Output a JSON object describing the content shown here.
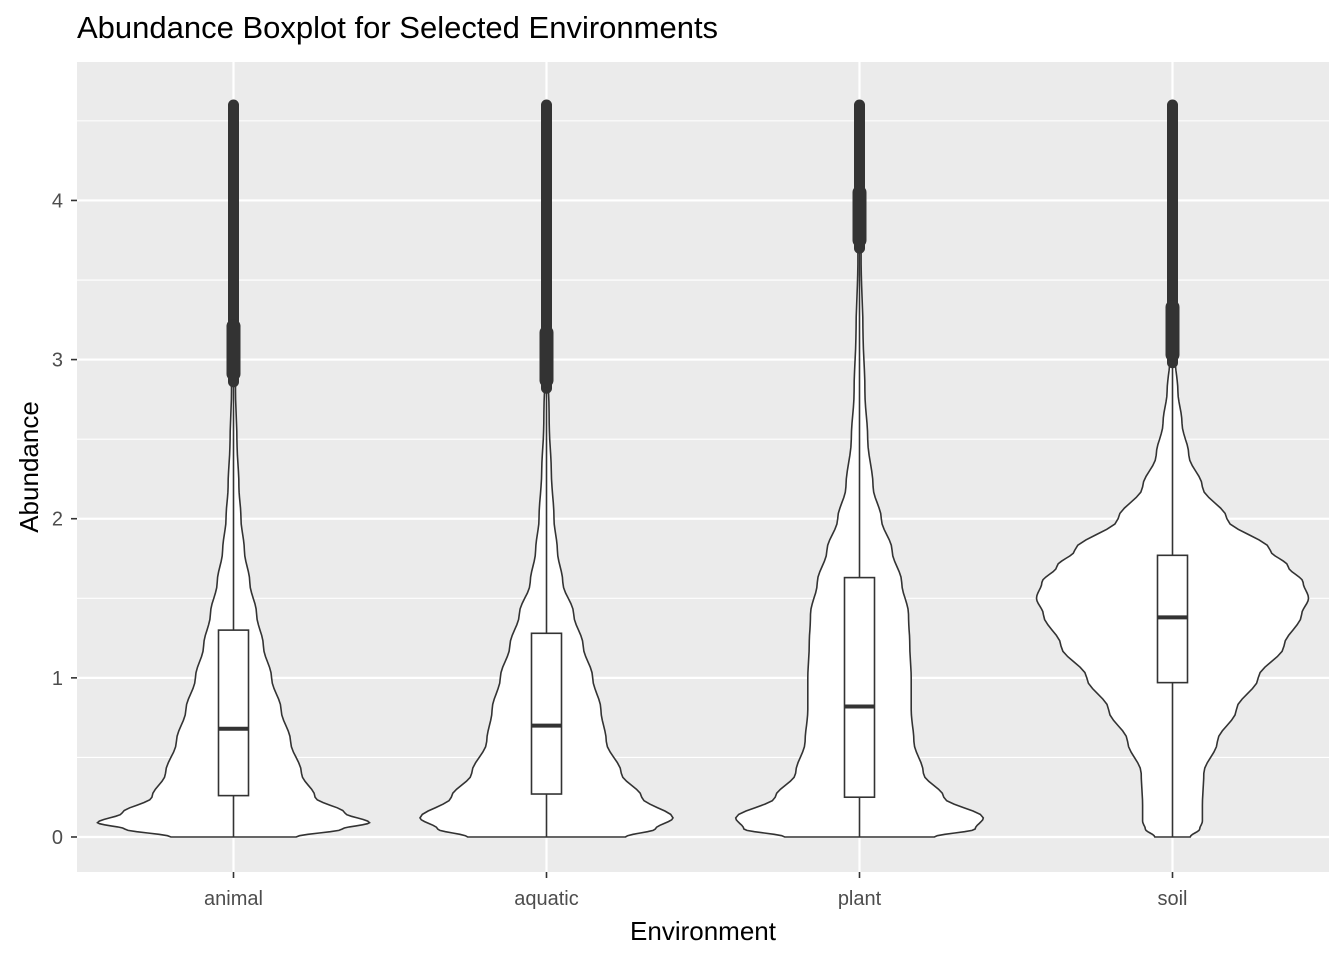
{
  "chart_data": {
    "type": "violin",
    "title": "Abundance Boxplot for Selected Environments",
    "xlabel": "Environment",
    "ylabel": "Abundance",
    "categories": [
      "animal",
      "aquatic",
      "plant",
      "soil"
    ],
    "ylim": [
      -0.22,
      4.87
    ],
    "yticks": [
      0,
      1,
      2,
      3,
      4
    ],
    "grid": true,
    "legend": "none",
    "colors": {
      "panel": "#ebebeb",
      "grid": "#ffffff",
      "violin_fill": "#ffffff",
      "line": "#333333"
    },
    "series": [
      {
        "category": "animal",
        "box": {
          "q1": 0.26,
          "median": 0.68,
          "q3": 1.3,
          "whisker_low": 0,
          "whisker_high": 2.86
        },
        "outliers_range": [
          2.86,
          4.6
        ],
        "density": [
          [
            0,
            0.46
          ],
          [
            0.05,
            0.8
          ],
          [
            0.09,
            1.0
          ],
          [
            0.15,
            0.82
          ],
          [
            0.25,
            0.6
          ],
          [
            0.4,
            0.5
          ],
          [
            0.6,
            0.42
          ],
          [
            0.8,
            0.35
          ],
          [
            1.0,
            0.28
          ],
          [
            1.2,
            0.22
          ],
          [
            1.4,
            0.17
          ],
          [
            1.6,
            0.12
          ],
          [
            1.8,
            0.08
          ],
          [
            2.0,
            0.055
          ],
          [
            2.2,
            0.04
          ],
          [
            2.5,
            0.025
          ],
          [
            2.8,
            0.015
          ],
          [
            3.2,
            0.008
          ],
          [
            3.6,
            0.005
          ],
          [
            4.0,
            0.004
          ],
          [
            4.3,
            0.004
          ],
          [
            4.6,
            0.004
          ]
        ]
      },
      {
        "category": "aquatic",
        "box": {
          "q1": 0.27,
          "median": 0.7,
          "q3": 1.28,
          "whisker_low": 0,
          "whisker_high": 2.82
        },
        "outliers_range": [
          2.82,
          4.6
        ],
        "density": [
          [
            0,
            0.58
          ],
          [
            0.05,
            0.8
          ],
          [
            0.12,
            0.93
          ],
          [
            0.25,
            0.7
          ],
          [
            0.4,
            0.55
          ],
          [
            0.6,
            0.44
          ],
          [
            0.8,
            0.4
          ],
          [
            1.0,
            0.34
          ],
          [
            1.2,
            0.27
          ],
          [
            1.4,
            0.2
          ],
          [
            1.6,
            0.12
          ],
          [
            1.8,
            0.08
          ],
          [
            2.0,
            0.055
          ],
          [
            2.3,
            0.035
          ],
          [
            2.6,
            0.02
          ],
          [
            3.0,
            0.01
          ],
          [
            3.4,
            0.006
          ],
          [
            3.8,
            0.005
          ],
          [
            4.2,
            0.004
          ],
          [
            4.6,
            0.004
          ]
        ]
      },
      {
        "category": "plant",
        "box": {
          "q1": 0.25,
          "median": 0.82,
          "q3": 1.63,
          "whisker_low": 0,
          "whisker_high": 3.7
        },
        "outliers_range": [
          3.7,
          4.6
        ],
        "density": [
          [
            0,
            0.55
          ],
          [
            0.05,
            0.85
          ],
          [
            0.12,
            0.91
          ],
          [
            0.25,
            0.62
          ],
          [
            0.4,
            0.47
          ],
          [
            0.6,
            0.4
          ],
          [
            0.8,
            0.38
          ],
          [
            1.0,
            0.38
          ],
          [
            1.2,
            0.37
          ],
          [
            1.4,
            0.36
          ],
          [
            1.6,
            0.31
          ],
          [
            1.8,
            0.24
          ],
          [
            2.0,
            0.16
          ],
          [
            2.2,
            0.1
          ],
          [
            2.5,
            0.06
          ],
          [
            2.8,
            0.04
          ],
          [
            3.2,
            0.025
          ],
          [
            3.6,
            0.012
          ],
          [
            4.0,
            0.006
          ],
          [
            4.3,
            0.005
          ],
          [
            4.6,
            0.004
          ]
        ]
      },
      {
        "category": "soil",
        "box": {
          "q1": 0.97,
          "median": 1.38,
          "q3": 1.77,
          "whisker_low": 0,
          "whisker_high": 2.98
        },
        "outliers_range": [
          2.98,
          4.6
        ],
        "density": [
          [
            0,
            0.13
          ],
          [
            0.05,
            0.2
          ],
          [
            0.1,
            0.22
          ],
          [
            0.2,
            0.22
          ],
          [
            0.4,
            0.23
          ],
          [
            0.6,
            0.33
          ],
          [
            0.8,
            0.47
          ],
          [
            1.0,
            0.63
          ],
          [
            1.2,
            0.82
          ],
          [
            1.4,
            0.95
          ],
          [
            1.5,
            1.0
          ],
          [
            1.6,
            0.96
          ],
          [
            1.7,
            0.85
          ],
          [
            1.8,
            0.72
          ],
          [
            2.0,
            0.4
          ],
          [
            2.2,
            0.22
          ],
          [
            2.4,
            0.12
          ],
          [
            2.6,
            0.07
          ],
          [
            2.8,
            0.04
          ],
          [
            3.0,
            0.02
          ],
          [
            3.3,
            0.01
          ],
          [
            3.6,
            0.006
          ],
          [
            4.0,
            0.005
          ],
          [
            4.3,
            0.004
          ],
          [
            4.6,
            0.004
          ]
        ]
      }
    ]
  }
}
